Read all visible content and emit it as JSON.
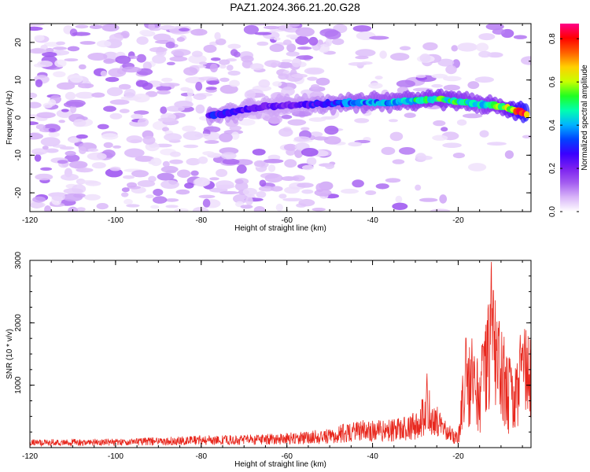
{
  "figure": {
    "title": "PAZ1.2024.366.21.20.G28"
  },
  "chart_data": [
    {
      "type": "heatmap",
      "xlabel": "Height of straight line (km)",
      "ylabel": "Frequency (Hz)",
      "xlim": [
        -120,
        -3
      ],
      "ylim": [
        -25,
        25
      ],
      "x_ticks": [
        -120,
        -100,
        -80,
        -60,
        -40,
        -20
      ],
      "y_ticks": [
        -20,
        -10,
        0,
        10,
        20
      ],
      "colorbar": {
        "label": "Normalized spectral amplitude",
        "range": [
          0,
          0.87
        ],
        "ticks": [
          0.0,
          0.2,
          0.4,
          0.6,
          0.8
        ],
        "colormap": [
          "#ffffff",
          "#d8b4f8",
          "#a35cf0",
          "#7a1ff0",
          "#3a00ff",
          "#0044ff",
          "#00b4ff",
          "#00ffb0",
          "#20ff20",
          "#c8ff00",
          "#ffd000",
          "#ff6000",
          "#ff0000",
          "#ff0088"
        ]
      },
      "ridge": [
        {
          "x": -78,
          "f": 0.5,
          "a": 0.3
        },
        {
          "x": -65,
          "f": 3.0,
          "a": 0.22
        },
        {
          "x": -55,
          "f": 3.5,
          "a": 0.25
        },
        {
          "x": -45,
          "f": 4.0,
          "a": 0.38
        },
        {
          "x": -37,
          "f": 4.0,
          "a": 0.42
        },
        {
          "x": -31,
          "f": 4.5,
          "a": 0.48
        },
        {
          "x": -25,
          "f": 5.0,
          "a": 0.55
        },
        {
          "x": -15,
          "f": 3.5,
          "a": 0.48
        },
        {
          "x": -10,
          "f": 3.0,
          "a": 0.55
        },
        {
          "x": -4,
          "f": 1.0,
          "a": 0.85
        }
      ]
    },
    {
      "type": "line",
      "xlabel": "Height of straight line (km)",
      "ylabel": "SNR (10 * v/v)",
      "xlim": [
        -120,
        -3
      ],
      "ylim": [
        0,
        3000
      ],
      "x_ticks": [
        -120,
        -100,
        -80,
        -60,
        -40,
        -20
      ],
      "y_ticks": [
        1000,
        2000,
        3000
      ],
      "line_color": "#e8281e",
      "envelope": [
        {
          "x": -120,
          "y": 110
        },
        {
          "x": -100,
          "y": 120
        },
        {
          "x": -80,
          "y": 160
        },
        {
          "x": -70,
          "y": 170
        },
        {
          "x": -60,
          "y": 200
        },
        {
          "x": -50,
          "y": 250
        },
        {
          "x": -44,
          "y": 380
        },
        {
          "x": -40,
          "y": 360
        },
        {
          "x": -35,
          "y": 380
        },
        {
          "x": -30,
          "y": 480
        },
        {
          "x": -27,
          "y": 820
        },
        {
          "x": -25,
          "y": 560
        },
        {
          "x": -22,
          "y": 300
        },
        {
          "x": -20,
          "y": 180
        },
        {
          "x": -19,
          "y": 1000
        },
        {
          "x": -17,
          "y": 1700
        },
        {
          "x": -16,
          "y": 1200
        },
        {
          "x": -14,
          "y": 1500
        },
        {
          "x": -12,
          "y": 2950
        },
        {
          "x": -11,
          "y": 2000
        },
        {
          "x": -9,
          "y": 1500
        },
        {
          "x": -7,
          "y": 1100
        },
        {
          "x": -5,
          "y": 1750
        },
        {
          "x": -3,
          "y": 1650
        }
      ],
      "peaks": [
        {
          "x": -27.3,
          "y": 1250
        },
        {
          "x": -18.2,
          "y": 1950
        },
        {
          "x": -16.8,
          "y": 1750
        },
        {
          "x": -14.2,
          "y": 1800
        },
        {
          "x": -12.3,
          "y": 3000
        },
        {
          "x": -11.8,
          "y": 2800
        },
        {
          "x": -10.5,
          "y": 2100
        },
        {
          "x": -5.5,
          "y": 1900
        },
        {
          "x": -4.5,
          "y": 2000
        }
      ]
    }
  ]
}
